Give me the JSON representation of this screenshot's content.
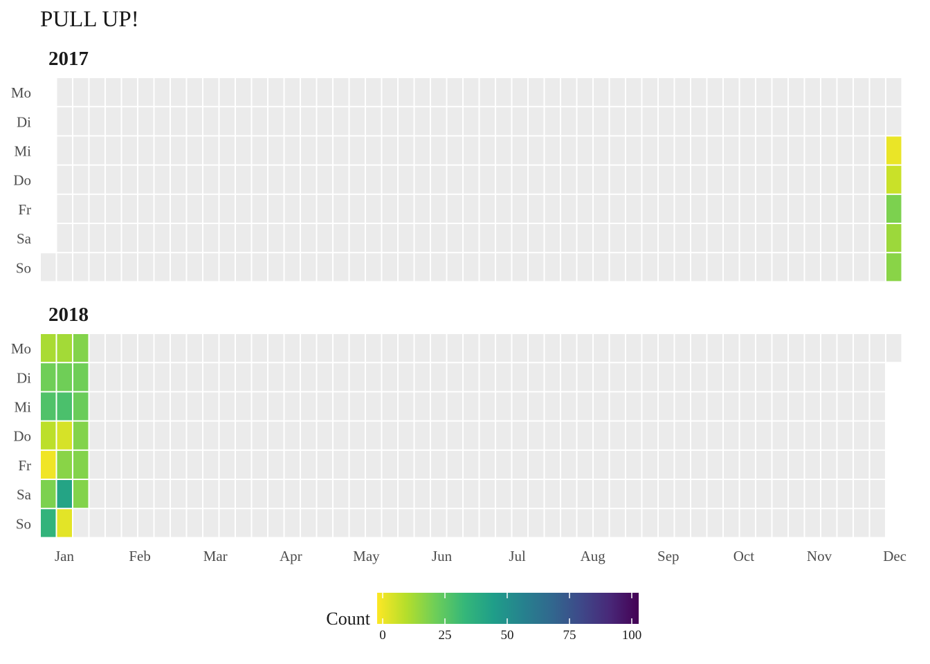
{
  "title": "PULL UP!",
  "chart_data": {
    "type": "heatmap",
    "subtype": "calendar",
    "title": "PULL UP!",
    "weekdays": [
      "Mo",
      "Di",
      "Mi",
      "Do",
      "Fr",
      "Sa",
      "So"
    ],
    "months": [
      "Jan",
      "Feb",
      "Mar",
      "Apr",
      "May",
      "Jun",
      "Jul",
      "Aug",
      "Sep",
      "Oct",
      "Nov",
      "Dec"
    ],
    "empty_color": "#ebebeb",
    "panels": [
      {
        "year": "2017",
        "leading_empty_days": 6,
        "total_days": 365,
        "values": [
          {
            "date": "2017-12-27",
            "value": 3
          },
          {
            "date": "2017-12-28",
            "value": 8
          },
          {
            "date": "2017-12-29",
            "value": 20
          },
          {
            "date": "2017-12-30",
            "value": 15
          },
          {
            "date": "2017-12-31",
            "value": 18
          }
        ]
      },
      {
        "year": "2018",
        "leading_empty_days": 0,
        "total_days": 365,
        "values": [
          {
            "date": "2018-01-01",
            "value": 13
          },
          {
            "date": "2018-01-02",
            "value": 22
          },
          {
            "date": "2018-01-03",
            "value": 28
          },
          {
            "date": "2018-01-04",
            "value": 10
          },
          {
            "date": "2018-01-05",
            "value": 2
          },
          {
            "date": "2018-01-06",
            "value": 20
          },
          {
            "date": "2018-01-07",
            "value": 35
          },
          {
            "date": "2018-01-08",
            "value": 14
          },
          {
            "date": "2018-01-09",
            "value": 22
          },
          {
            "date": "2018-01-10",
            "value": 29
          },
          {
            "date": "2018-01-11",
            "value": 6
          },
          {
            "date": "2018-01-12",
            "value": 18
          },
          {
            "date": "2018-01-13",
            "value": 42
          },
          {
            "date": "2018-01-14",
            "value": 4
          },
          {
            "date": "2018-01-15",
            "value": 19
          },
          {
            "date": "2018-01-16",
            "value": 22
          },
          {
            "date": "2018-01-17",
            "value": 23
          },
          {
            "date": "2018-01-18",
            "value": 19
          },
          {
            "date": "2018-01-19",
            "value": 19
          },
          {
            "date": "2018-01-20",
            "value": 19
          }
        ]
      }
    ],
    "legend": {
      "title": "Count",
      "position": "bottom",
      "min": 0,
      "max": 100,
      "ticks": [
        0,
        25,
        50,
        75,
        100
      ],
      "palette": [
        "#fde725",
        "#b5de2b",
        "#6ece58",
        "#35b779",
        "#1f9e89",
        "#26828e",
        "#31688e",
        "#3e4989",
        "#482878",
        "#440154"
      ]
    }
  }
}
